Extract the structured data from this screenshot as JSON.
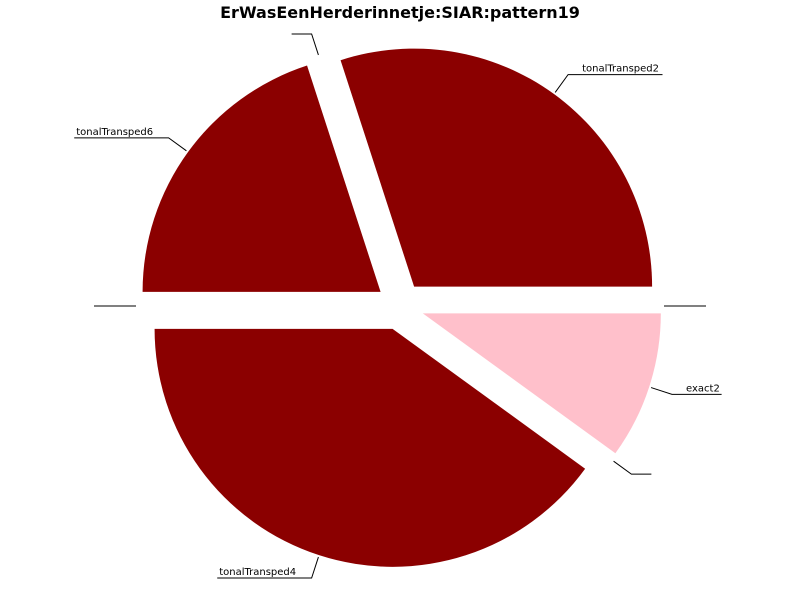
{
  "chart_data": {
    "type": "pie",
    "title": "ErWasEenHerderinnetje:SIAR:pattern19",
    "slices": [
      {
        "label": "tonalTransped2",
        "value": 30,
        "color": "#8b0000",
        "exploded": true
      },
      {
        "label": "",
        "value": 0,
        "color": "#8b0000",
        "exploded": true
      },
      {
        "label": "tonalTransped6",
        "value": 20,
        "color": "#8b0000",
        "exploded": true
      },
      {
        "label": "",
        "value": 0,
        "color": "#8b0000",
        "exploded": true
      },
      {
        "label": "tonalTransped4",
        "value": 40,
        "color": "#8b0000",
        "exploded": true
      },
      {
        "label": "",
        "value": 0,
        "color": "#8b0000",
        "exploded": true
      },
      {
        "label": "exact2",
        "value": 10,
        "color": "#ffc0cb",
        "exploded": true
      },
      {
        "label": "",
        "value": 0,
        "color": "#8b0000",
        "exploded": true
      }
    ],
    "start_angle_deg": 0,
    "direction": "counterclockwise",
    "legend": "none"
  }
}
